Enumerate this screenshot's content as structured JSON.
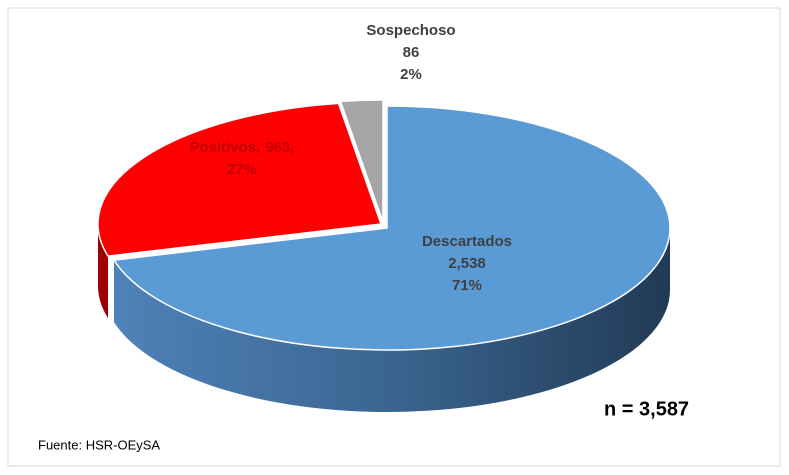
{
  "chart_data": {
    "type": "pie3d",
    "categories": [
      "Descartados",
      "Positivos",
      "Sospechoso"
    ],
    "values": [
      2538,
      963,
      86
    ],
    "value_labels": [
      "2,538",
      "963",
      "86"
    ],
    "percent_labels": [
      "71%",
      "27%",
      "2%"
    ],
    "label_separator": ",",
    "colors": [
      "#5b9bd5",
      "#ff0000",
      "#a5a5a5"
    ],
    "side_colors": [
      "#2f5377",
      "#a00000",
      "#707070"
    ],
    "note": "n =  3,587",
    "source": "Fuente: HSR-OEySA"
  }
}
